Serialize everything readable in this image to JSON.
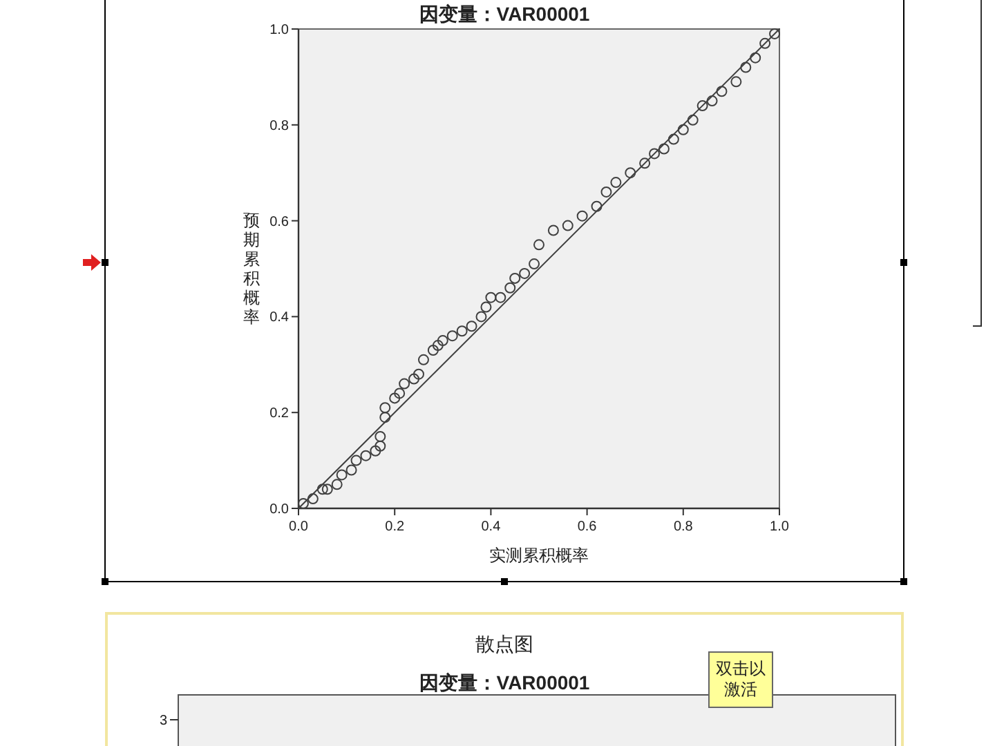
{
  "chart_data": [
    {
      "type": "scatter",
      "title": "因变量：VAR00001",
      "xlabel": "实测累积概率",
      "ylabel": "预期累积概率",
      "xlim": [
        0,
        1
      ],
      "ylim": [
        0,
        1
      ],
      "xticks": [
        {
          "value": 0,
          "label": "0.0"
        },
        {
          "value": 0.2,
          "label": "0.2"
        },
        {
          "value": 0.4,
          "label": "0.4"
        },
        {
          "value": 0.6,
          "label": "0.6"
        },
        {
          "value": 0.8,
          "label": "0.8"
        },
        {
          "value": 1,
          "label": "1.0"
        }
      ],
      "yticks": [
        {
          "value": 0,
          "label": "0.0"
        },
        {
          "value": 0.2,
          "label": "0.2"
        },
        {
          "value": 0.4,
          "label": "0.4"
        },
        {
          "value": 0.6,
          "label": "0.6"
        },
        {
          "value": 0.8,
          "label": "0.8"
        },
        {
          "value": 1,
          "label": "1.0"
        }
      ],
      "series": [
        {
          "type": "scatter",
          "marker": "circle",
          "color": "#404040",
          "x": [
            0.01,
            0.03,
            0.05,
            0.06,
            0.08,
            0.09,
            0.11,
            0.12,
            0.14,
            0.16,
            0.17,
            0.17,
            0.18,
            0.18,
            0.2,
            0.21,
            0.22,
            0.24,
            0.25,
            0.26,
            0.28,
            0.29,
            0.3,
            0.32,
            0.34,
            0.36,
            0.38,
            0.39,
            0.4,
            0.42,
            0.44,
            0.45,
            0.47,
            0.49,
            0.5,
            0.53,
            0.56,
            0.59,
            0.62,
            0.64,
            0.66,
            0.69,
            0.72,
            0.74,
            0.76,
            0.78,
            0.8,
            0.82,
            0.84,
            0.86,
            0.88,
            0.91,
            0.93,
            0.95,
            0.97,
            0.99
          ],
          "values": [
            0.01,
            0.02,
            0.04,
            0.04,
            0.05,
            0.07,
            0.08,
            0.1,
            0.11,
            0.12,
            0.13,
            0.15,
            0.19,
            0.21,
            0.23,
            0.24,
            0.26,
            0.27,
            0.28,
            0.31,
            0.33,
            0.34,
            0.35,
            0.36,
            0.37,
            0.38,
            0.4,
            0.42,
            0.44,
            0.44,
            0.46,
            0.48,
            0.49,
            0.51,
            0.55,
            0.58,
            0.59,
            0.61,
            0.63,
            0.66,
            0.68,
            0.7,
            0.72,
            0.74,
            0.75,
            0.77,
            0.79,
            0.81,
            0.84,
            0.85,
            0.87,
            0.89,
            0.92,
            0.94,
            0.97,
            0.99
          ]
        },
        {
          "type": "line",
          "color": "#404040",
          "x": [
            0,
            1
          ],
          "values": [
            0,
            1
          ]
        }
      ]
    },
    {
      "type": "other",
      "title": "散点图",
      "subtitle": "因变量：VAR00001",
      "annotations": [
        "双击以激活",
        "3"
      ]
    }
  ]
}
